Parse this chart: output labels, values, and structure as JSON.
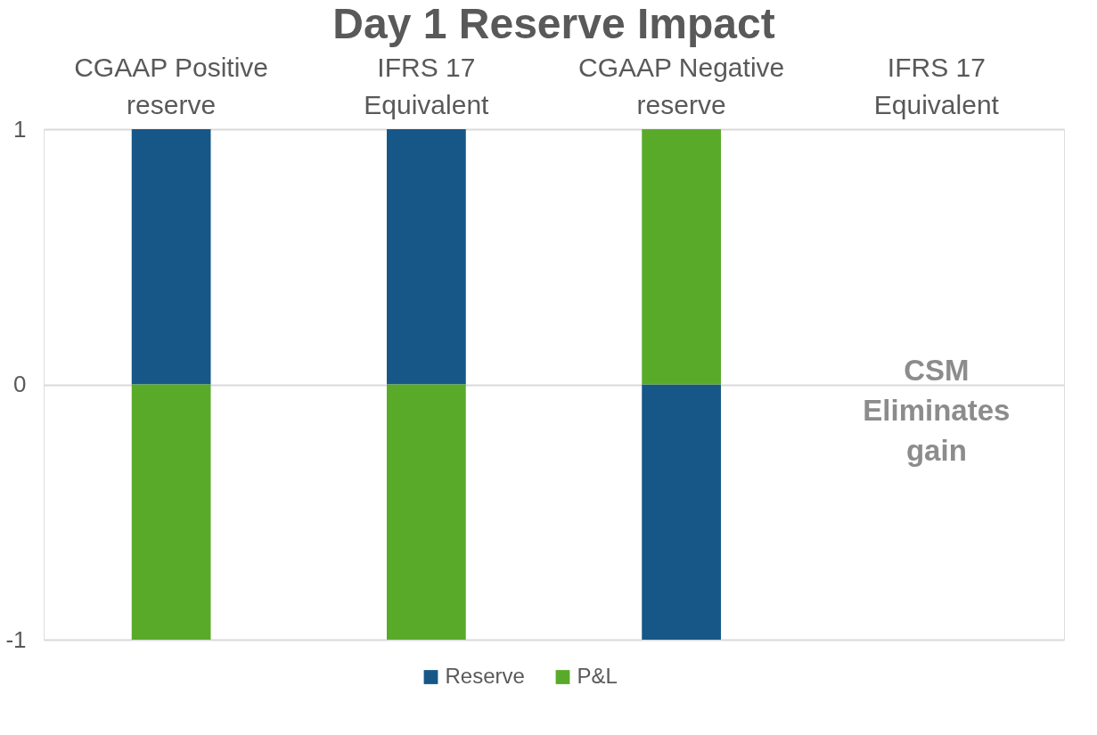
{
  "chart_data": {
    "type": "bar",
    "title": "Day 1 Reserve Impact",
    "categories": [
      "CGAAP Positive reserve",
      "IFRS 17 Equivalent",
      "CGAAP Negative reserve",
      "IFRS 17 Equivalent"
    ],
    "series": [
      {
        "name": "Reserve",
        "color": "#175788",
        "values": [
          1,
          1,
          -1,
          null
        ]
      },
      {
        "name": "P&L",
        "color": "#5aaa2a",
        "values": [
          -1,
          -1,
          1,
          null
        ]
      }
    ],
    "stacked": true,
    "ylim": [
      -1,
      1
    ],
    "yticks": [
      {
        "value": -1,
        "label": "-1"
      },
      {
        "value": 0,
        "label": "0"
      },
      {
        "value": 1,
        "label": "1"
      }
    ],
    "grid": "y",
    "legend": "bottom",
    "annotations": [
      "CSM Eliminates gain"
    ]
  }
}
